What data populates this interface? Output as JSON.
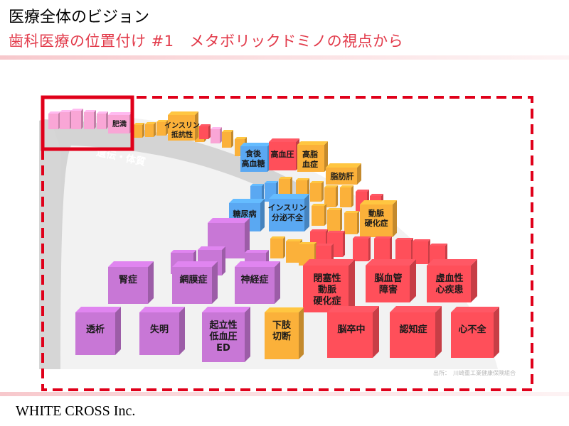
{
  "header": {
    "title": "医療全体のビジョン",
    "subtitle": "歯科医療の位置付け #1　メタボリックドミノの視点から"
  },
  "footer": {
    "company": "WHITE CROSS Inc."
  },
  "diagram": {
    "band_label": "遺伝・体質",
    "source": "出所：　川崎重工業健康保険組合",
    "labels": {
      "obesity": "肥満",
      "insulin_resistance": [
        "インスリン",
        "抵抗性"
      ],
      "postprandial_hyperglycemia": [
        "食後",
        "高血糖"
      ],
      "hypertension": "高血圧",
      "hyperlipidemia": [
        "高脂",
        "血症"
      ],
      "fatty_liver": "脂肪肝",
      "diabetes": "糖尿病",
      "insulin_deficiency": [
        "インスリン",
        "分泌不全"
      ],
      "arteriosclerosis": [
        "動脈",
        "硬化症"
      ],
      "nephropathy": "腎症",
      "retinopathy": "網膜症",
      "neuropathy": "神経症",
      "obliterative_arteriosclerosis": [
        "閉塞性",
        "動脈",
        "硬化症"
      ],
      "cerebrovascular_disorder": [
        "脳血管",
        "障害"
      ],
      "ischemic_heart_disease": [
        "虚血性",
        "心疾患"
      ],
      "dialysis": "透析",
      "blindness": "失明",
      "orthostatic_hypotension_ed": [
        "起立性",
        "低血圧",
        "ED"
      ],
      "lower_limb_amputation": [
        "下肢",
        "切断"
      ],
      "stroke": "脳卒中",
      "dementia": "認知症",
      "heart_failure": "心不全"
    },
    "colors": {
      "pink": "#f9a6d6",
      "orange": "#fbb13a",
      "red": "#ff4f5a",
      "blue": "#5aa8f2",
      "purple": "#c877d6",
      "highlight": "#e0001a"
    }
  }
}
